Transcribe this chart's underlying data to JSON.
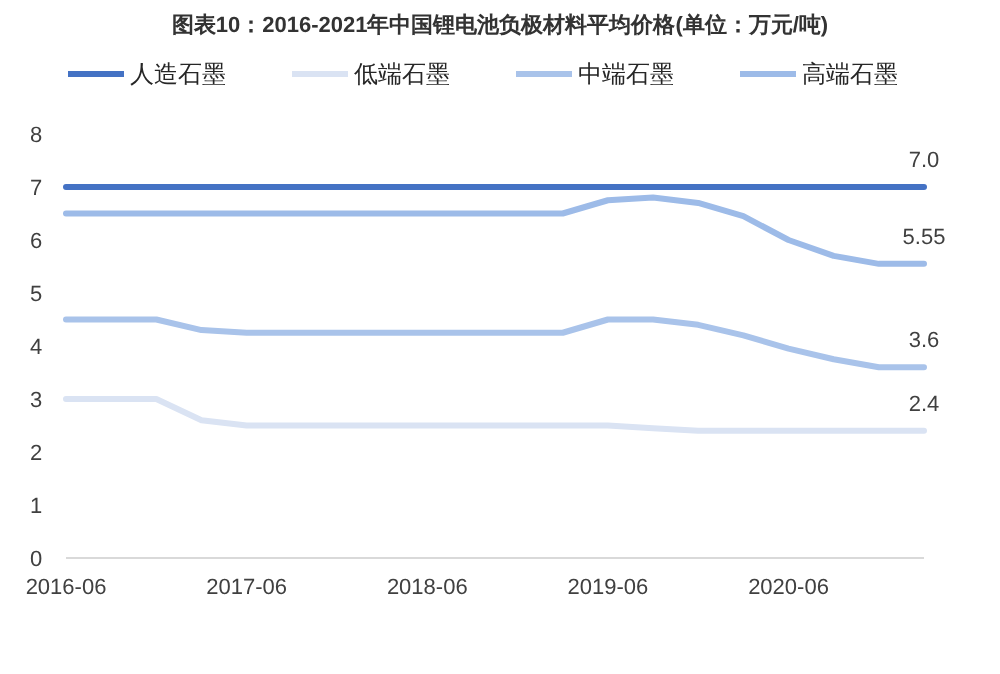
{
  "chart_data": {
    "type": "line",
    "title": "图表10：2016-2021年中国锂电池负极材料平均价格(单位：万元/吨)",
    "x": [
      "2016-06",
      "2016-09",
      "2016-12",
      "2017-03",
      "2017-06",
      "2017-09",
      "2017-12",
      "2018-03",
      "2018-06",
      "2018-09",
      "2018-12",
      "2019-03",
      "2019-06",
      "2019-09",
      "2019-12",
      "2020-03",
      "2020-06",
      "2020-09",
      "2020-12",
      "2021-03"
    ],
    "series": [
      {
        "name": "人造石墨",
        "color": "#4472c4",
        "values": [
          7.0,
          7.0,
          7.0,
          7.0,
          7.0,
          7.0,
          7.0,
          7.0,
          7.0,
          7.0,
          7.0,
          7.0,
          7.0,
          7.0,
          7.0,
          7.0,
          7.0,
          7.0,
          7.0,
          7.0
        ],
        "value_labels": [
          null,
          null,
          null,
          null,
          null,
          null,
          null,
          null,
          null,
          null,
          null,
          null,
          null,
          null,
          null,
          null,
          null,
          null,
          null,
          "7.0"
        ]
      },
      {
        "name": "低端石墨",
        "color": "#dae3f3",
        "values": [
          3.0,
          3.0,
          3.0,
          2.6,
          2.5,
          2.5,
          2.5,
          2.5,
          2.5,
          2.5,
          2.5,
          2.5,
          2.5,
          2.45,
          2.4,
          2.4,
          2.4,
          2.4,
          2.4,
          2.4
        ],
        "value_labels": [
          null,
          null,
          null,
          null,
          null,
          null,
          null,
          null,
          null,
          null,
          null,
          null,
          null,
          null,
          null,
          null,
          null,
          null,
          null,
          "2.4"
        ]
      },
      {
        "name": "中端石墨",
        "color": "#a9c3ea",
        "values": [
          4.5,
          4.5,
          4.5,
          4.3,
          4.25,
          4.25,
          4.25,
          4.25,
          4.25,
          4.25,
          4.25,
          4.25,
          4.5,
          4.5,
          4.4,
          4.2,
          3.95,
          3.75,
          3.6,
          3.6
        ],
        "value_labels": [
          null,
          null,
          null,
          null,
          null,
          null,
          null,
          null,
          null,
          null,
          null,
          null,
          null,
          null,
          null,
          null,
          null,
          null,
          null,
          "3.6"
        ]
      },
      {
        "name": "高端石墨",
        "color": "#9dbbe8",
        "values": [
          6.5,
          6.5,
          6.5,
          6.5,
          6.5,
          6.5,
          6.5,
          6.5,
          6.5,
          6.5,
          6.5,
          6.5,
          6.75,
          6.8,
          6.7,
          6.45,
          6.0,
          5.7,
          5.55,
          5.55
        ],
        "value_labels": [
          null,
          null,
          null,
          null,
          null,
          null,
          null,
          null,
          null,
          null,
          null,
          null,
          null,
          null,
          null,
          null,
          null,
          null,
          null,
          "5.55"
        ]
      }
    ],
    "xlim": [
      "2016-06",
      "2021-03"
    ],
    "xticks": [
      "2016-06",
      "2017-06",
      "2018-06",
      "2019-06",
      "2020-06"
    ],
    "ylim": [
      0,
      8
    ],
    "yticks": [
      0,
      1,
      2,
      3,
      4,
      5,
      6,
      7,
      8
    ],
    "legend": "top",
    "grid": false
  }
}
